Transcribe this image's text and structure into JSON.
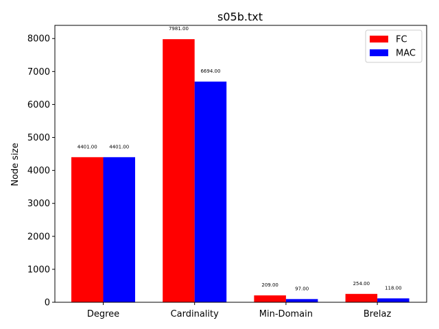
{
  "chart_data": {
    "type": "bar",
    "title": "s05b.txt",
    "xlabel": "",
    "ylabel": "Node size",
    "categories": [
      "Degree",
      "Cardinality",
      "Min-Domain",
      "Brelaz"
    ],
    "series": [
      {
        "name": "FC",
        "color": "#ff0000",
        "values": [
          4401,
          7981,
          209,
          254
        ],
        "labels": [
          "4401.00",
          "7981.00",
          "209.00",
          "254.00"
        ]
      },
      {
        "name": "MAC",
        "color": "#0000ff",
        "values": [
          4401,
          6694,
          97,
          118
        ],
        "labels": [
          "4401.00",
          "6694.00",
          "97.00",
          "118.00"
        ]
      }
    ],
    "ylim": [
      0,
      8400
    ],
    "yticks": [
      0,
      1000,
      2000,
      3000,
      4000,
      5000,
      6000,
      7000,
      8000
    ],
    "ytick_labels": [
      "0",
      "1000",
      "2000",
      "3000",
      "4000",
      "5000",
      "6000",
      "7000",
      "8000"
    ],
    "grid": false,
    "legend_position": "top-right"
  }
}
